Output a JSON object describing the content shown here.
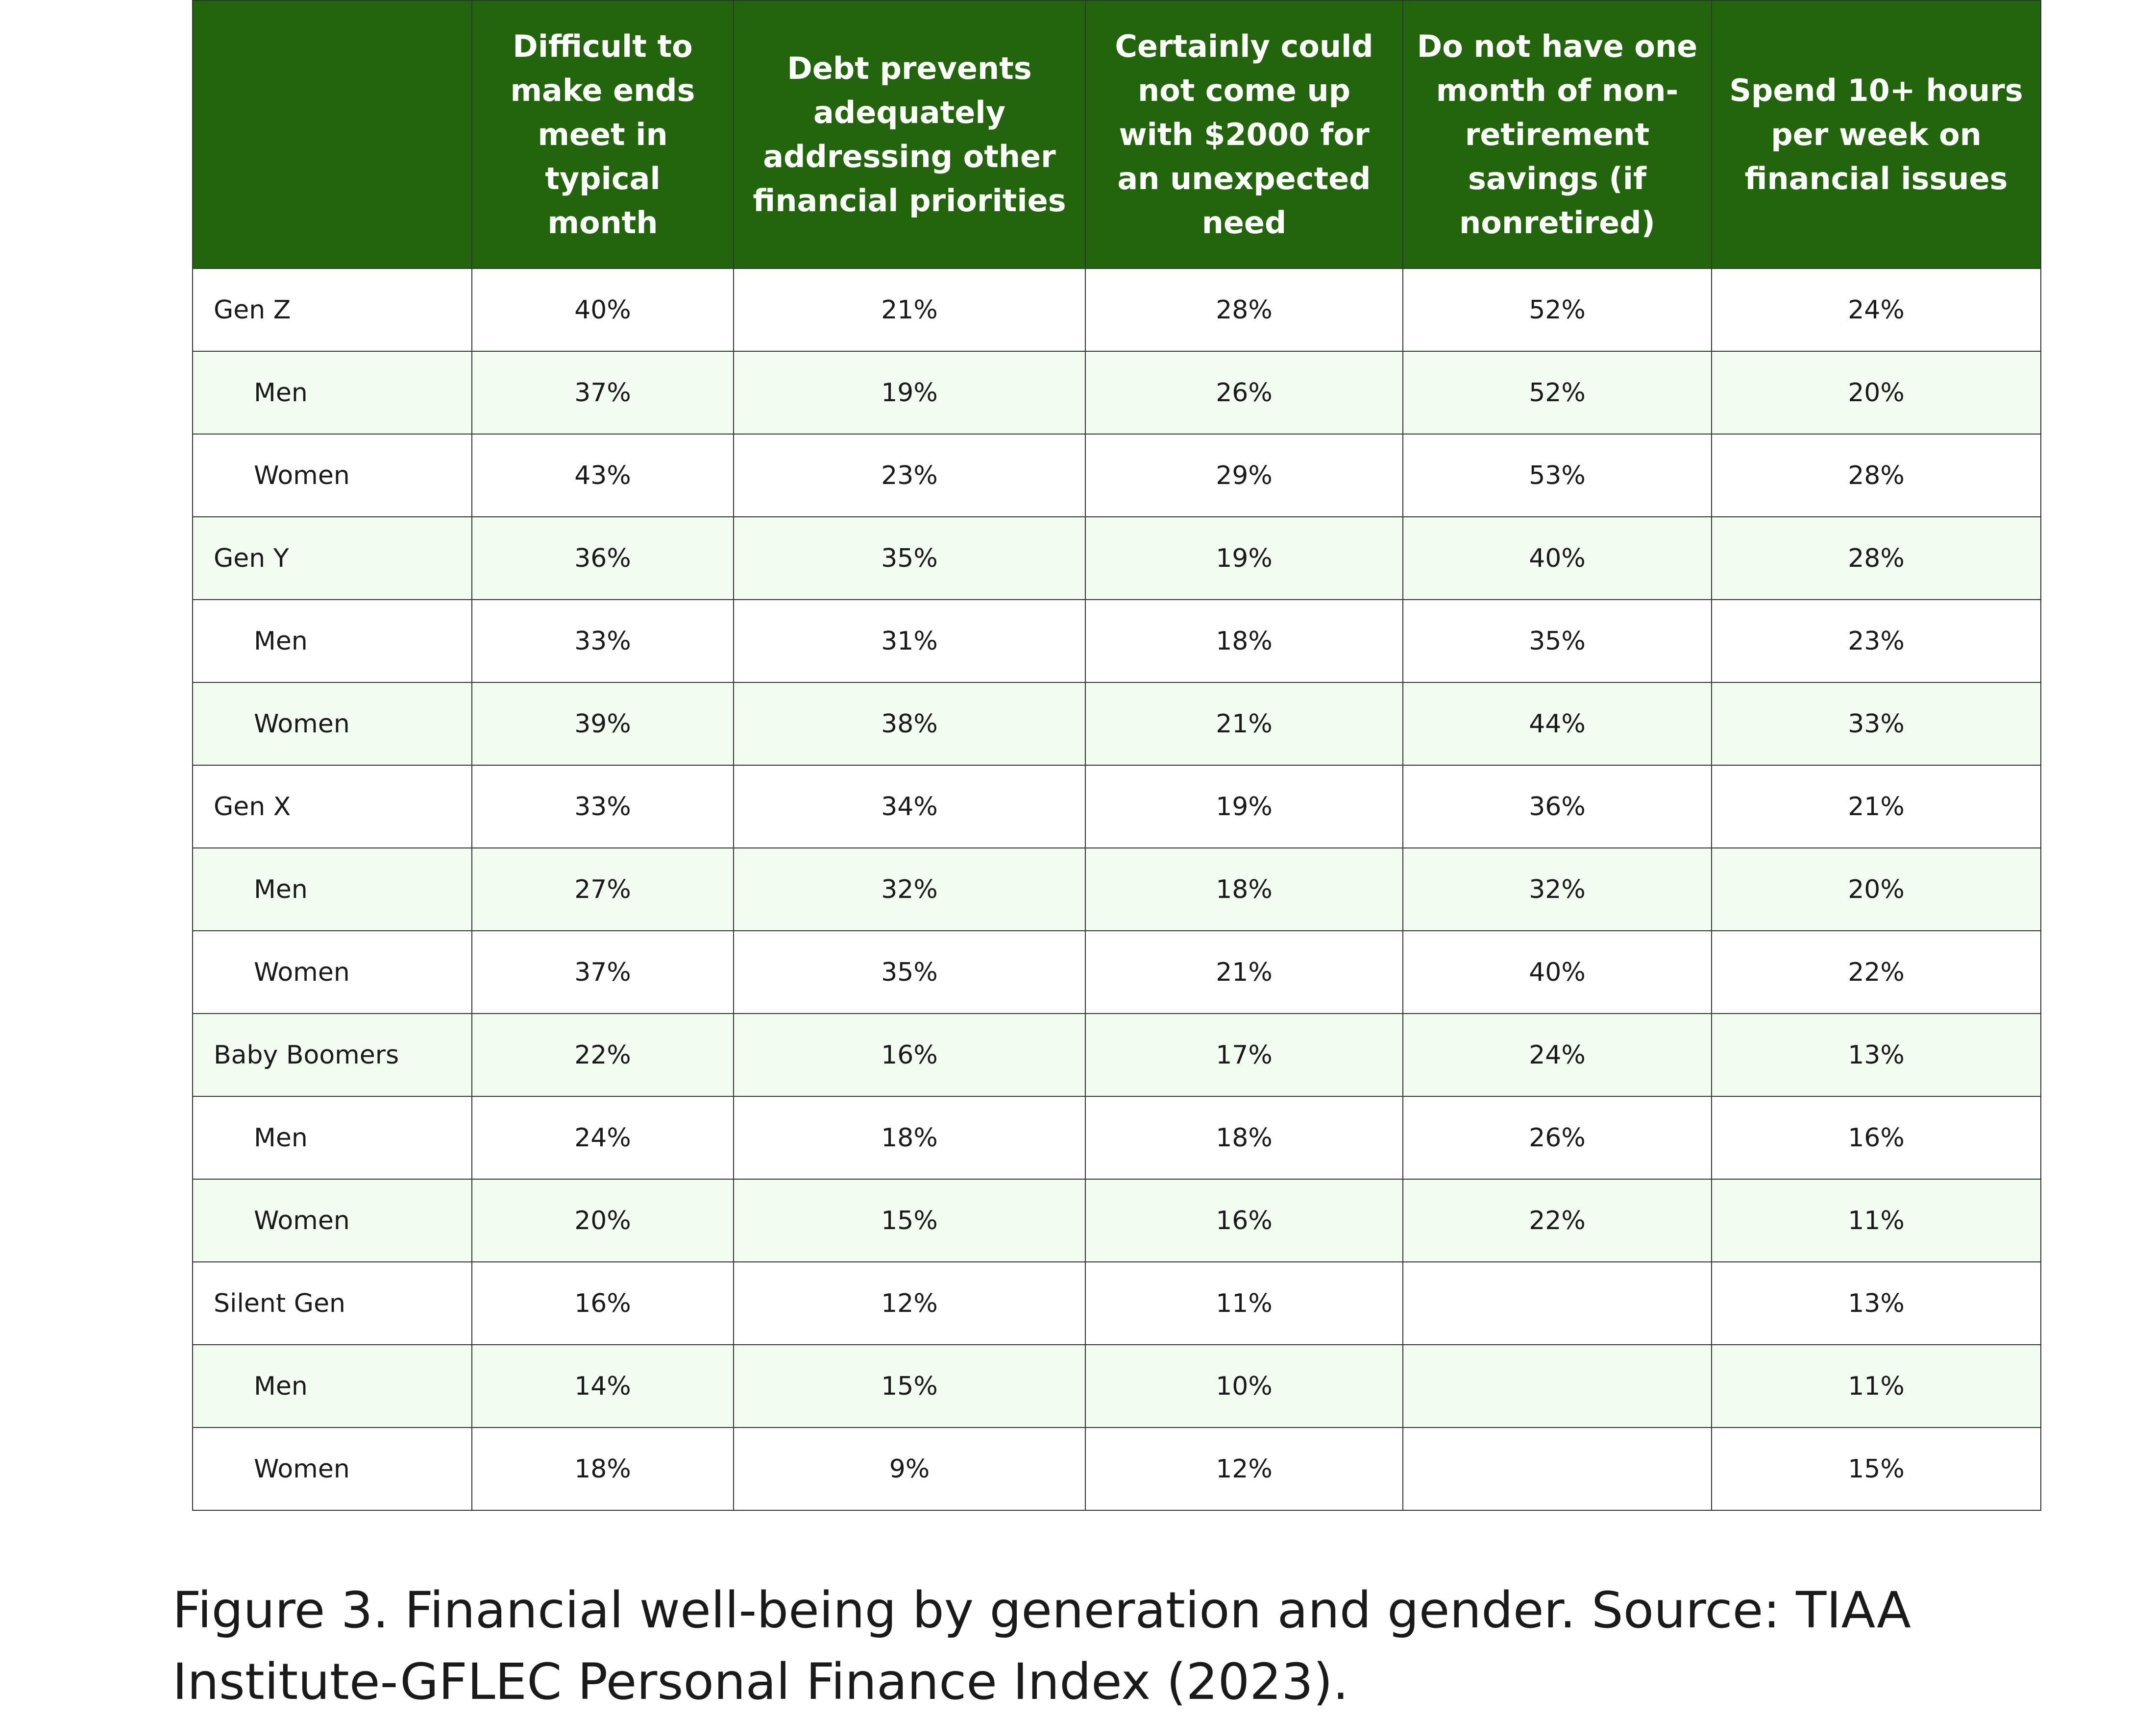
{
  "chart_data": {
    "type": "table",
    "columns": [
      "",
      "Difficult to make ends meet in typical month",
      "Debt prevents adequately addressing other financial priorities",
      "Certainly could not come up with $2000 for an unexpected need",
      "Do not have one month of non-retirement savings (if nonretired)",
      "Spend 10+ hours per week on financial issues"
    ],
    "rows": [
      {
        "label": "Gen Z",
        "sub": false,
        "values": [
          "40%",
          "21%",
          "28%",
          "52%",
          "24%"
        ]
      },
      {
        "label": "Men",
        "sub": true,
        "values": [
          "37%",
          "19%",
          "26%",
          "52%",
          "20%"
        ]
      },
      {
        "label": "Women",
        "sub": true,
        "values": [
          "43%",
          "23%",
          "29%",
          "53%",
          "28%"
        ]
      },
      {
        "label": "Gen Y",
        "sub": false,
        "values": [
          "36%",
          "35%",
          "19%",
          "40%",
          "28%"
        ]
      },
      {
        "label": "Men",
        "sub": true,
        "values": [
          "33%",
          "31%",
          "18%",
          "35%",
          "23%"
        ]
      },
      {
        "label": "Women",
        "sub": true,
        "values": [
          "39%",
          "38%",
          "21%",
          "44%",
          "33%"
        ]
      },
      {
        "label": "Gen X",
        "sub": false,
        "values": [
          "33%",
          "34%",
          "19%",
          "36%",
          "21%"
        ]
      },
      {
        "label": "Men",
        "sub": true,
        "values": [
          "27%",
          "32%",
          "18%",
          "32%",
          "20%"
        ]
      },
      {
        "label": "Women",
        "sub": true,
        "values": [
          "37%",
          "35%",
          "21%",
          "40%",
          "22%"
        ]
      },
      {
        "label": "Baby Boomers",
        "sub": false,
        "values": [
          "22%",
          "16%",
          "17%",
          "24%",
          "13%"
        ]
      },
      {
        "label": "Men",
        "sub": true,
        "values": [
          "24%",
          "18%",
          "18%",
          "26%",
          "16%"
        ]
      },
      {
        "label": "Women",
        "sub": true,
        "values": [
          "20%",
          "15%",
          "16%",
          "22%",
          "11%"
        ]
      },
      {
        "label": "Silent Gen",
        "sub": false,
        "values": [
          "16%",
          "12%",
          "11%",
          "",
          "13%"
        ]
      },
      {
        "label": "Men",
        "sub": true,
        "values": [
          "14%",
          "15%",
          "10%",
          "",
          "11%"
        ]
      },
      {
        "label": "Women",
        "sub": true,
        "values": [
          "18%",
          "9%",
          "12%",
          "",
          "15%"
        ]
      }
    ],
    "colors": {
      "header_bg": "#23650c",
      "header_text": "#ffffff",
      "stripe": "#f3fcf1"
    }
  },
  "caption": "Figure 3. Financial well-being by generation and gender. Source: TIAA Institute-GFLEC Personal Finance Index (2023)."
}
